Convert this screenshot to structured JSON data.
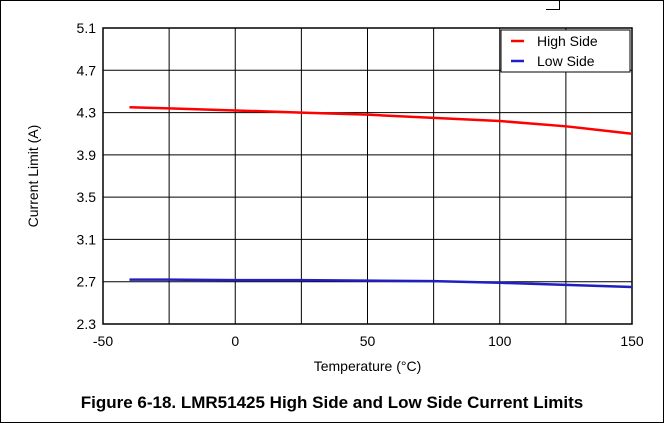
{
  "caption": "Figure 6-18. LMR51425 High Side and Low Side Current Limits",
  "chart_data": {
    "type": "line",
    "xlabel": "Temperature (°C)",
    "ylabel": "Current Limit (A)",
    "xlim": [
      -50,
      150
    ],
    "ylim": [
      2.3,
      5.1
    ],
    "x_ticks": [
      -50,
      0,
      50,
      100,
      150
    ],
    "y_ticks": [
      2.3,
      2.7,
      3.1,
      3.5,
      3.9,
      4.3,
      4.7,
      5.1
    ],
    "x_tick_labels": [
      "-50",
      "0",
      "50",
      "100",
      "150"
    ],
    "y_tick_labels": [
      "2.3",
      "2.7",
      "3.1",
      "3.5",
      "3.9",
      "4.3",
      "4.7",
      "5.1"
    ],
    "x_grid": [
      -50,
      -25,
      0,
      25,
      50,
      75,
      100,
      125,
      150
    ],
    "grid": true,
    "legend_position": "top-right",
    "series": [
      {
        "name": "High Side",
        "color": "#ff0000",
        "x": [
          -40,
          -25,
          0,
          25,
          50,
          75,
          100,
          125,
          150
        ],
        "values": [
          4.35,
          4.34,
          4.32,
          4.3,
          4.28,
          4.25,
          4.22,
          4.17,
          4.1
        ]
      },
      {
        "name": "Low Side",
        "color": "#2020c0",
        "x": [
          -40,
          -25,
          0,
          25,
          50,
          75,
          100,
          125,
          150
        ],
        "values": [
          2.72,
          2.72,
          2.715,
          2.715,
          2.71,
          2.705,
          2.69,
          2.67,
          2.65
        ]
      }
    ]
  }
}
